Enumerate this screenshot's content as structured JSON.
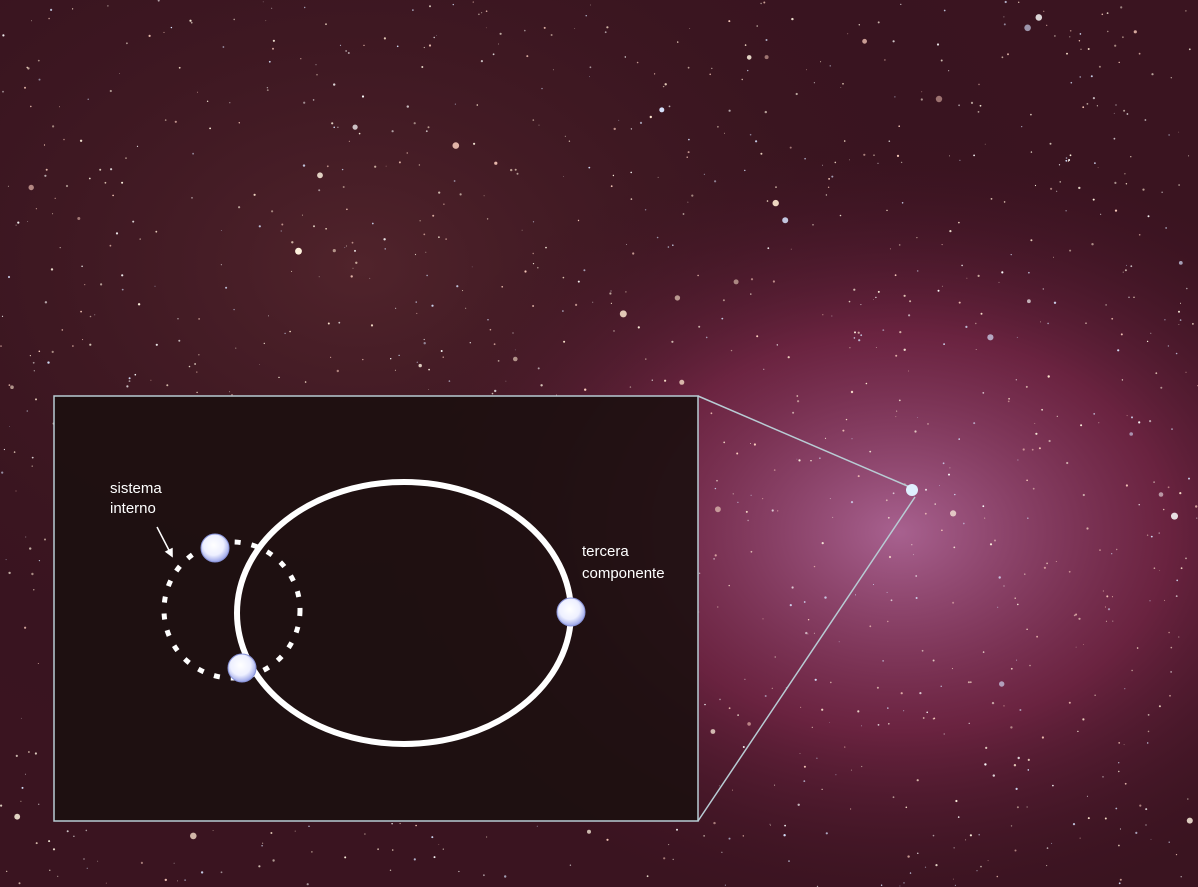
{
  "labels": {
    "inner_system": [
      "sistema",
      "interno"
    ],
    "third_component": [
      "tercera",
      "componente"
    ]
  }
}
